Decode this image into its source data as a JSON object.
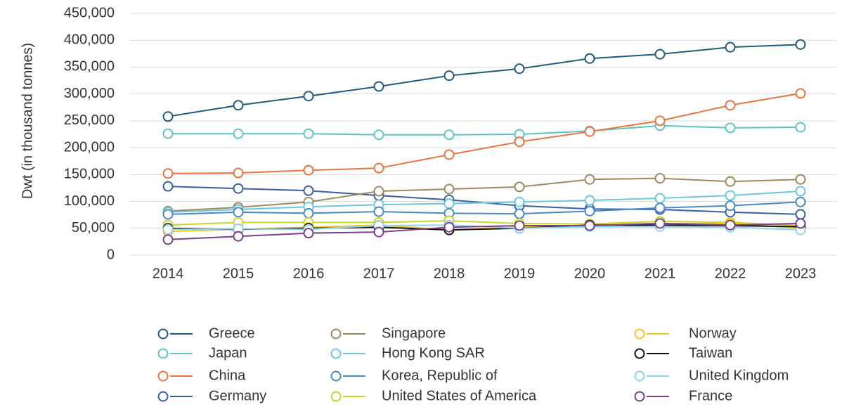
{
  "chart_data": {
    "type": "line",
    "y_label": "Dwt (in thousand tonnes)",
    "categories": [
      "2014",
      "2015",
      "2016",
      "2017",
      "2018",
      "2019",
      "2020",
      "2021",
      "2022",
      "2023"
    ],
    "ylim": [
      0,
      450000
    ],
    "yticks": [
      0,
      {
        "value": 50000,
        "label": "50,000"
      },
      {
        "value": 100000,
        "label": "100,000"
      },
      {
        "value": 150000,
        "label": "150,000"
      },
      {
        "value": 200000,
        "label": "200,000"
      },
      {
        "value": 250000,
        "label": "250,000"
      },
      {
        "value": 300000,
        "label": "300,000"
      },
      {
        "value": 350000,
        "label": "350,000"
      },
      {
        "value": 400000,
        "label": "400,000"
      },
      {
        "value": 450000,
        "label": "450,000"
      }
    ],
    "grid": true,
    "series": [
      {
        "name": "Greece",
        "color": "#1f5c7a",
        "values": [
          258000,
          279000,
          296000,
          314000,
          334000,
          347000,
          366000,
          374000,
          387000,
          392000
        ]
      },
      {
        "name": "Japan",
        "color": "#5ec4c4",
        "values": [
          226000,
          226000,
          226000,
          224000,
          224000,
          225000,
          231000,
          241000,
          237000,
          238000
        ]
      },
      {
        "name": "China",
        "color": "#e8743b",
        "values": [
          152000,
          153000,
          158000,
          162000,
          187000,
          211000,
          230000,
          250000,
          279000,
          301000
        ]
      },
      {
        "name": "Germany",
        "color": "#3a5fa8",
        "values": [
          128000,
          124000,
          120000,
          111000,
          103000,
          92000,
          86000,
          85000,
          80000,
          76000
        ]
      },
      {
        "name": "Singapore",
        "color": "#9c8a5e",
        "values": [
          82000,
          89000,
          99000,
          119000,
          123000,
          127000,
          141000,
          143000,
          137000,
          141000
        ]
      },
      {
        "name": "Hong Kong SAR",
        "color": "#6cc7e0",
        "values": [
          80000,
          85000,
          90000,
          94000,
          96000,
          99000,
          102000,
          106000,
          111000,
          119000
        ]
      },
      {
        "name": "Korea, Republic of",
        "color": "#4a8ac4",
        "values": [
          76000,
          80000,
          78000,
          81000,
          78000,
          77000,
          82000,
          88000,
          92000,
          99000
        ]
      },
      {
        "name": "United States of America",
        "color": "#c8d62b",
        "values": [
          56000,
          61000,
          61000,
          61000,
          64000,
          59000,
          58000,
          63000,
          61000,
          55000
        ]
      },
      {
        "name": "Norway",
        "color": "#f5c518",
        "values": [
          44000,
          48000,
          52000,
          56000,
          47000,
          52000,
          56000,
          59000,
          59000,
          50000
        ]
      },
      {
        "name": "Taiwan",
        "color": "#111111",
        "values": [
          50000,
          48000,
          50000,
          52000,
          47000,
          50000,
          56000,
          56000,
          55000,
          53000
        ]
      },
      {
        "name": "United Kingdom",
        "color": "#8fd3ef",
        "values": [
          48000,
          49000,
          48000,
          55000,
          56000,
          50000,
          53000,
          53000,
          52000,
          47000
        ]
      },
      {
        "name": "France",
        "color": "#7b3f8c",
        "values": [
          29000,
          35000,
          41000,
          43000,
          52000,
          55000,
          55000,
          59000,
          56000,
          59000
        ]
      }
    ]
  }
}
